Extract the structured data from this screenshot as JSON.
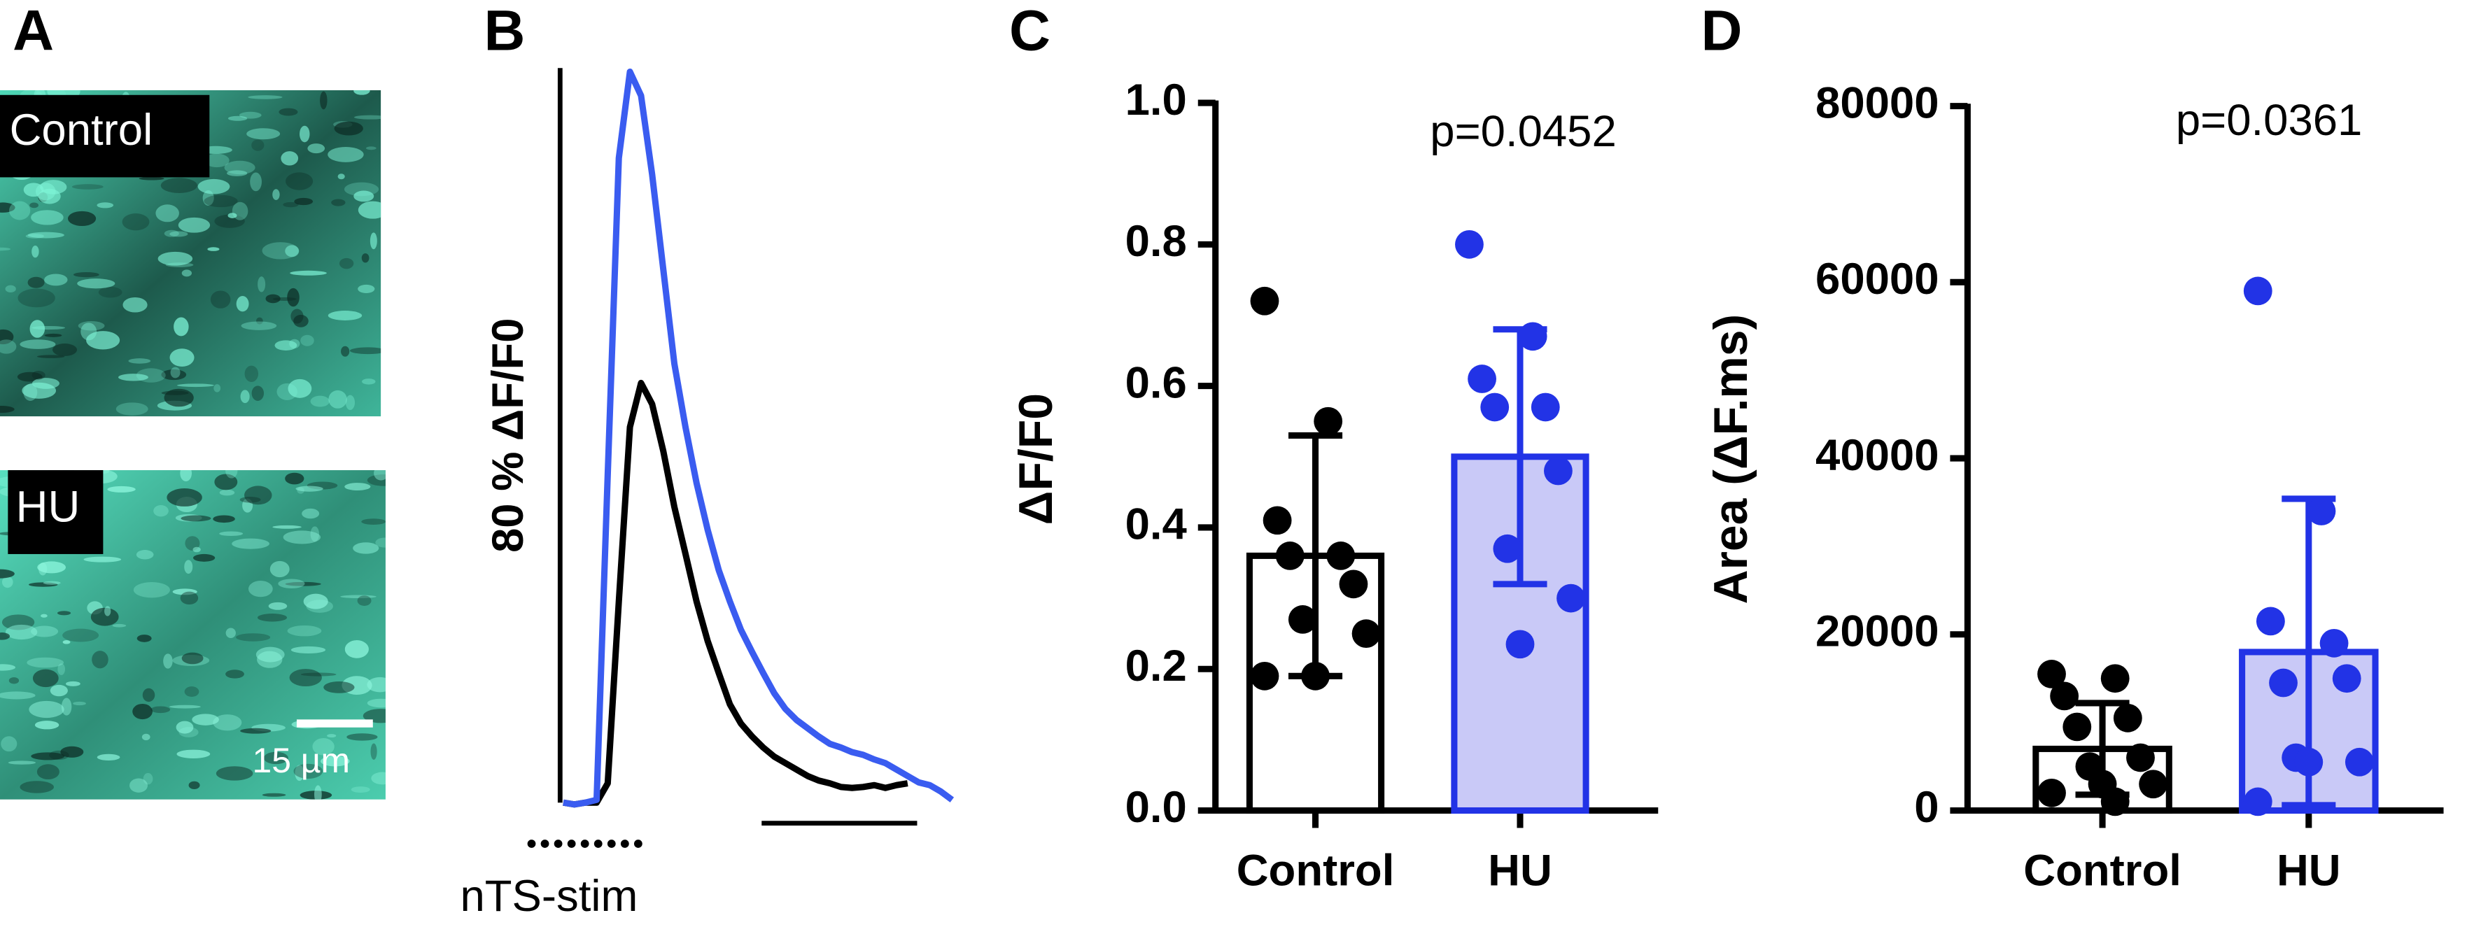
{
  "panels": [
    "A",
    "B",
    "C",
    "D"
  ],
  "images": {
    "labels": [
      "Control",
      "HU"
    ],
    "scale_bar": "15 µm"
  },
  "chart_data": [
    {
      "type": "line",
      "y_label": "80 % ΔF/F0",
      "stim_label": "nTS-stim",
      "ylim": [
        0,
        80
      ],
      "series": [
        {
          "color": "#3a5cf0",
          "values": [
            0,
            -0.2,
            0,
            0.3,
            35.7,
            70.2,
            79.6,
            77,
            68.4,
            58.1,
            47.8,
            40.9,
            34.8,
            29.7,
            25.3,
            21.9,
            18.8,
            16.4,
            14.1,
            11.9,
            10.2,
            9.0,
            8.1,
            7.2,
            6.4,
            6.0,
            5.5,
            5.2,
            4.7,
            4.3,
            3.6,
            2.9,
            2.2,
            1.9,
            1.2,
            0.3
          ]
        },
        {
          "color": "#000000",
          "values": [
            0,
            -0.2,
            0,
            0,
            2.1,
            21.9,
            40.9,
            45.7,
            43.4,
            38.3,
            32.2,
            27.1,
            21.9,
            17.6,
            14.1,
            10.7,
            8.6,
            7.2,
            6.0,
            5.0,
            4.3,
            3.6,
            2.9,
            2.4,
            2.1,
            1.7,
            1.6,
            1.7,
            1.9,
            1.6,
            1.9,
            2.1
          ]
        }
      ]
    },
    {
      "type": "bar",
      "y_label": "ΔF/F0",
      "annotation": "p=0.0452",
      "categories": [
        "Control",
        "HU"
      ],
      "values": [
        0.36,
        0.5
      ],
      "errors": [
        0.17,
        0.18
      ],
      "points": [
        [
          0.72,
          0.55,
          0.41,
          0.36,
          0.36,
          0.32,
          0.27,
          0.25,
          0.19,
          0.19
        ],
        [
          0.8,
          0.67,
          0.61,
          0.57,
          0.57,
          0.48,
          0.37,
          0.3,
          0.235
        ]
      ],
      "colors": [
        "#000000",
        "#2233e6"
      ],
      "bar_fills": [
        "#ffffff",
        "#c9c9f7"
      ],
      "ylim": [
        0,
        1.0
      ],
      "yticks": [
        {
          "value": 0,
          "label": "0.0"
        },
        0.2,
        0.4,
        0.6,
        0.8,
        {
          "value": 1.0,
          "label": "1.0"
        }
      ]
    },
    {
      "type": "bar",
      "y_label": "Area (ΔF.ms)",
      "annotation": "p=0.0361",
      "categories": [
        "Control",
        "HU"
      ],
      "values": [
        7000,
        18000
      ],
      "errors": [
        5200,
        17400
      ],
      "points": [
        [
          15500,
          15000,
          13000,
          10500,
          9500,
          6000,
          5000,
          3000,
          3000,
          2000,
          1000
        ],
        [
          59000,
          34000,
          21500,
          19000,
          14500,
          15000,
          6000,
          5500,
          5500,
          1000
        ]
      ],
      "colors": [
        "#000000",
        "#2233e6"
      ],
      "bar_fills": [
        "#ffffff",
        "#c9c9f7"
      ],
      "ylim": [
        0,
        80000
      ],
      "yticks": [
        0,
        20000,
        40000,
        60000,
        80000
      ]
    }
  ]
}
